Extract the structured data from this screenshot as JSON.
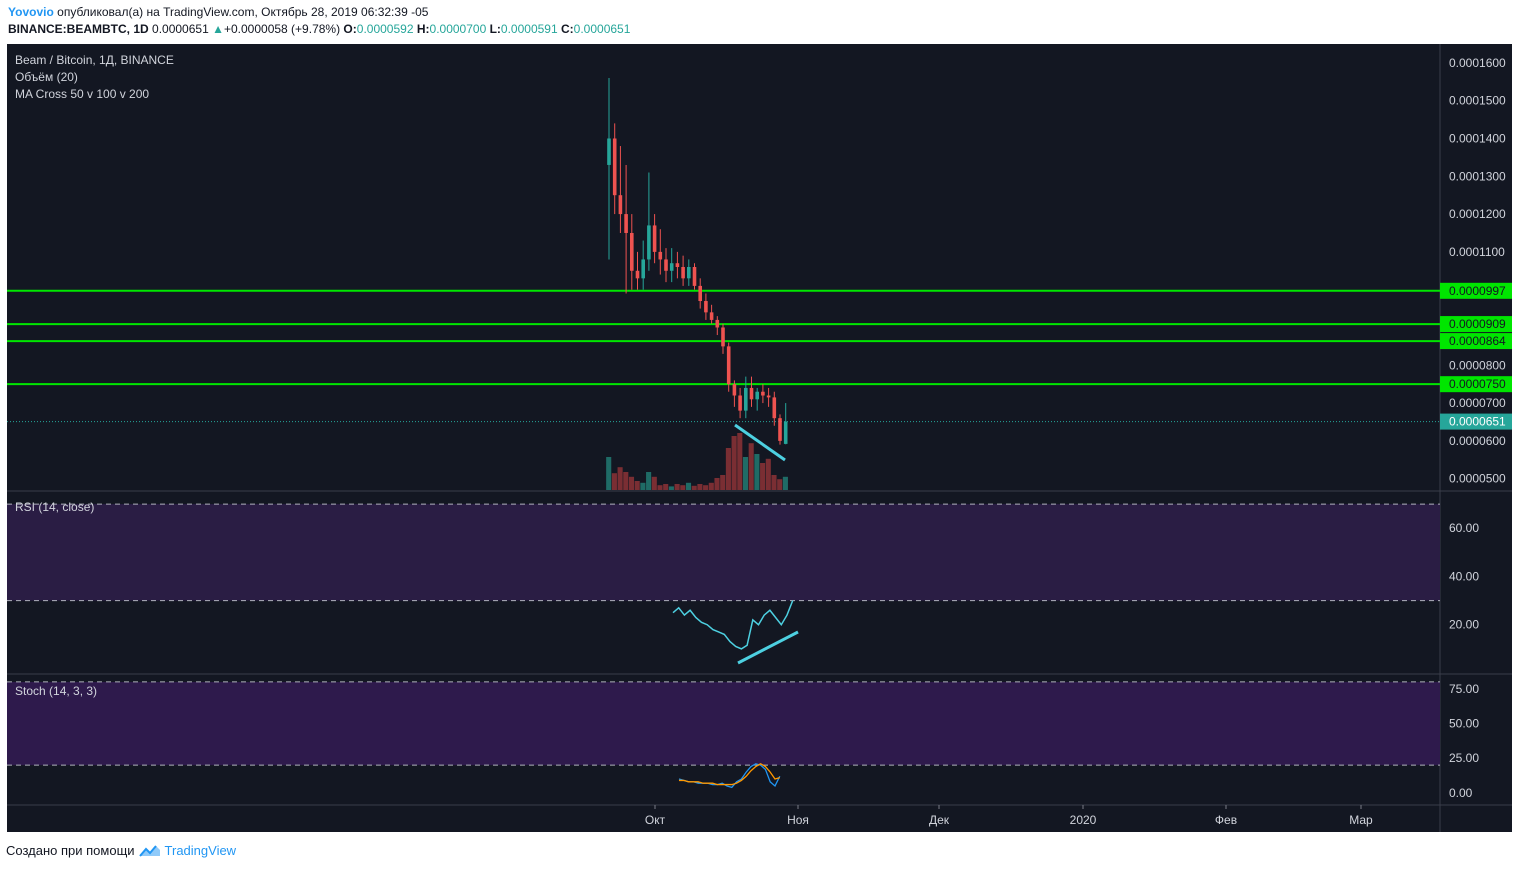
{
  "header": {
    "author": "Yovovio",
    "published_text": "опубликовал(а) на TradingView.com, Октябрь 28, 2019 06:32:39 -05",
    "symbol_line": "BINANCE:BEAMBTC, 1D",
    "last_price": "0.0000651",
    "change": "+0.0000058 (+9.78%)",
    "open_label": "O:",
    "open": "0.0000592",
    "high_label": "H:",
    "high": "0.0000700",
    "low_label": "L:",
    "low": "0.0000591",
    "close_label": "C:",
    "close": "0.0000651"
  },
  "legend": {
    "title": "Beam / Bitcoin, 1Д, BINANCE",
    "volume": "Объём (20)",
    "ma_cross": "MA Cross 50 v 100 v 200",
    "rsi": "RSI (14, close)",
    "stoch": "Stoch (14, 3, 3)"
  },
  "footer": {
    "created_with": "Создано при помощи",
    "brand": "TradingView"
  },
  "colors": {
    "background": "#131722",
    "up": "#26a69a",
    "down": "#ef5350",
    "volume_up": "#1f6b66",
    "volume_down": "#7a2e33",
    "level": "#00e600",
    "trend": "#4dd0e1",
    "rsi_band": "#2a1d44",
    "stoch_band": "#2e1a4c",
    "rsi_line": "#4dd0e1",
    "stoch_k": "#2196f3",
    "stoch_d": "#ff9800",
    "axis_text": "#d1d4dc"
  },
  "chart_data": [
    {
      "type": "candlestick",
      "title": "Beam / Bitcoin, 1Д, BINANCE",
      "x_ticks": [
        "Окт",
        "Ноя",
        "Дек",
        "2020",
        "Фев",
        "Мар"
      ],
      "y_ticks": [
        "0.0001600",
        "0.0001500",
        "0.0001400",
        "0.0001300",
        "0.0001200",
        "0.0001100",
        "0.0000800",
        "0.0000700",
        "0.0000600",
        "0.0000500"
      ],
      "ylim": [
        4.7e-05,
        0.000165
      ],
      "horizontal_levels": [
        {
          "value": 9.97e-05,
          "label": "0.0000997"
        },
        {
          "value": 9.09e-05,
          "label": "0.0000909"
        },
        {
          "value": 8.64e-05,
          "label": "0.0000864"
        },
        {
          "value": 7.5e-05,
          "label": "0.0000750"
        }
      ],
      "last_price_label": {
        "value": 6.51e-05,
        "label": "0.0000651"
      },
      "candles": [
        {
          "o": 0.000133,
          "h": 0.000156,
          "l": 0.000108,
          "c": 0.00014
        },
        {
          "o": 0.00014,
          "h": 0.000144,
          "l": 0.00012,
          "c": 0.000125
        },
        {
          "o": 0.000125,
          "h": 0.000138,
          "l": 0.000115,
          "c": 0.00012
        },
        {
          "o": 0.00012,
          "h": 0.000133,
          "l": 9.9e-05,
          "c": 0.000115
        },
        {
          "o": 0.000115,
          "h": 0.00012,
          "l": 0.0001,
          "c": 0.000105
        },
        {
          "o": 0.000105,
          "h": 0.00011,
          "l": 0.0001,
          "c": 0.000103
        },
        {
          "o": 0.000103,
          "h": 0.000113,
          "l": 0.0001,
          "c": 0.000108
        },
        {
          "o": 0.000108,
          "h": 0.000131,
          "l": 0.000105,
          "c": 0.000117
        },
        {
          "o": 0.000117,
          "h": 0.00012,
          "l": 0.000107,
          "c": 0.00011
        },
        {
          "o": 0.00011,
          "h": 0.000116,
          "l": 0.000104,
          "c": 0.000108
        },
        {
          "o": 0.000108,
          "h": 0.000111,
          "l": 0.000102,
          "c": 0.000105
        },
        {
          "o": 0.000105,
          "h": 0.000111,
          "l": 0.000102,
          "c": 0.000107
        },
        {
          "o": 0.000107,
          "h": 0.00011,
          "l": 0.000103,
          "c": 0.000106
        },
        {
          "o": 0.000106,
          "h": 0.000109,
          "l": 0.000101,
          "c": 0.000103
        },
        {
          "o": 0.000103,
          "h": 0.000108,
          "l": 0.000101,
          "c": 0.000106
        },
        {
          "o": 0.000106,
          "h": 0.000107,
          "l": 0.0001,
          "c": 0.000101
        },
        {
          "o": 0.000101,
          "h": 0.000103,
          "l": 9.5e-05,
          "c": 9.7e-05
        },
        {
          "o": 9.7e-05,
          "h": 9.9e-05,
          "l": 9.2e-05,
          "c": 9.4e-05
        },
        {
          "o": 9.4e-05,
          "h": 9.6e-05,
          "l": 9.1e-05,
          "c": 9.2e-05
        },
        {
          "o": 9.2e-05,
          "h": 9.3e-05,
          "l": 8.8e-05,
          "c": 9e-05
        },
        {
          "o": 9e-05,
          "h": 9.1e-05,
          "l": 8.3e-05,
          "c": 8.5e-05
        },
        {
          "o": 8.5e-05,
          "h": 8.6e-05,
          "l": 7.3e-05,
          "c": 7.5e-05
        },
        {
          "o": 7.5e-05,
          "h": 7.6e-05,
          "l": 6.9e-05,
          "c": 7.2e-05
        },
        {
          "o": 7.2e-05,
          "h": 7.4e-05,
          "l": 6.6e-05,
          "c": 6.8e-05
        },
        {
          "o": 6.8e-05,
          "h": 7.7e-05,
          "l": 6.6e-05,
          "c": 7.4e-05
        },
        {
          "o": 7.4e-05,
          "h": 7.7e-05,
          "l": 6.9e-05,
          "c": 7.1e-05
        },
        {
          "o": 7.1e-05,
          "h": 7.4e-05,
          "l": 6.8e-05,
          "c": 7.3e-05
        },
        {
          "o": 7.3e-05,
          "h": 7.5e-05,
          "l": 7e-05,
          "c": 7.2e-05
        },
        {
          "o": 7.2e-05,
          "h": 7.4e-05,
          "l": 6.9e-05,
          "c": 7.15e-05
        },
        {
          "o": 7.15e-05,
          "h": 7.3e-05,
          "l": 6.4e-05,
          "c": 6.6e-05
        },
        {
          "o": 6.6e-05,
          "h": 6.7e-05,
          "l": 5.9e-05,
          "c": 6e-05
        },
        {
          "o": 5.92e-05,
          "h": 7e-05,
          "l": 5.91e-05,
          "c": 6.51e-05
        }
      ],
      "volumes": [
        0.55,
        0.28,
        0.38,
        0.3,
        0.22,
        0.15,
        0.12,
        0.3,
        0.22,
        0.08,
        0.1,
        0.06,
        0.1,
        0.08,
        0.12,
        0.07,
        0.1,
        0.08,
        0.12,
        0.2,
        0.25,
        0.7,
        0.9,
        0.95,
        0.55,
        0.78,
        0.6,
        0.45,
        0.52,
        0.25,
        0.18,
        0.22
      ]
    },
    {
      "type": "line",
      "title": "RSI (14, close)",
      "y_ticks": [
        "60.00",
        "40.00",
        "20.00"
      ],
      "ylim": [
        0,
        75
      ],
      "bands": [
        70,
        30
      ],
      "values": [
        25.0,
        27.0,
        24.0,
        26.0,
        23.0,
        21.0,
        20.0,
        18.0,
        17.0,
        16.0,
        13.0,
        11.0,
        10.0,
        11.5,
        22.0,
        20.0,
        24.0,
        26.0,
        23.0,
        20.0,
        24.0,
        30.0
      ]
    },
    {
      "type": "line",
      "title": "Stoch (14, 3, 3)",
      "y_ticks": [
        "75.00",
        "50.00",
        "25.00",
        "0.00"
      ],
      "ylim": [
        -8,
        85
      ],
      "bands": [
        80,
        20
      ],
      "series": [
        {
          "values": [
            10,
            9,
            8,
            8,
            7,
            7,
            7,
            6,
            6,
            7,
            5,
            4,
            8,
            10,
            15,
            19,
            21,
            20,
            17,
            8,
            5,
            12
          ]
        },
        {
          "values": [
            9,
            9,
            8,
            8,
            8,
            7,
            7,
            7,
            6,
            6,
            6,
            6,
            7,
            9,
            12,
            16,
            19,
            21,
            19,
            15,
            10,
            11
          ]
        }
      ]
    }
  ]
}
